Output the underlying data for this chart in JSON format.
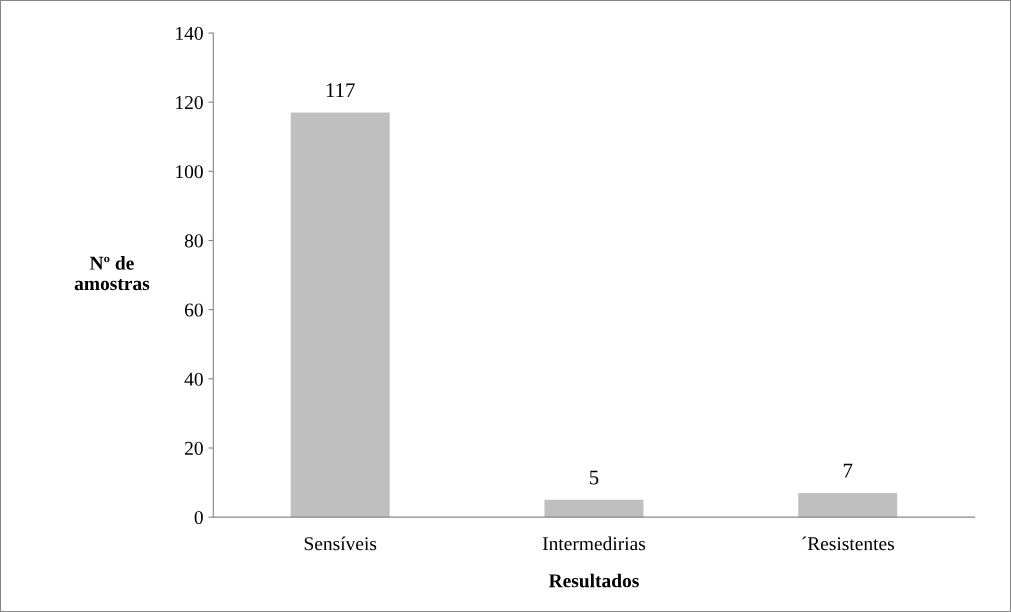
{
  "chart_data": {
    "type": "bar",
    "xlabel": "Resultados",
    "ylabel": "Nº de amostras",
    "categories": [
      "Sensíveis",
      "Intermedirias",
      "´Resistentes"
    ],
    "values": [
      117,
      5,
      7
    ],
    "color": "#bfbfbf",
    "ylim": [
      0,
      140
    ],
    "yticks": [
      0,
      20,
      40,
      60,
      80,
      100,
      120,
      140
    ],
    "grid": false,
    "data_labels": true
  }
}
